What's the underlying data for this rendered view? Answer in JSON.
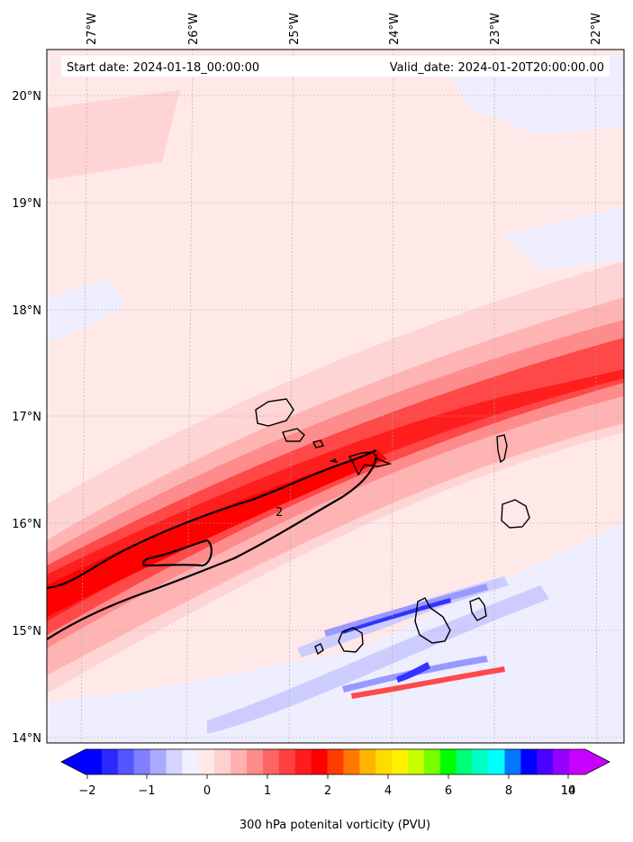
{
  "header": {
    "start_label": "Start date: 2024-01-18_00:00:00",
    "valid_label": "Valid_date: 2024-01-20T20:00:00.00"
  },
  "longitude_labels": [
    "27°W",
    "26°W",
    "25°W",
    "24°W",
    "23°W",
    "22°W"
  ],
  "latitude_labels": [
    "20°N",
    "19°N",
    "18°N",
    "17°N",
    "16°N",
    "15°N",
    "14°N"
  ],
  "contour_label": "2",
  "colorbar": {
    "title": "300 hPa potenital vorticity (PVU)",
    "tick_labels": [
      "−2",
      "−1",
      "0",
      "1",
      "2",
      "4",
      "6",
      "8",
      "10",
      "14"
    ],
    "colors": [
      "#0000ff",
      "#2a2aff",
      "#5555ff",
      "#7f7fff",
      "#aaaaff",
      "#d4d4ff",
      "#f0f0ff",
      "#ffe8e8",
      "#ffd0d0",
      "#ffb0b0",
      "#ff8c8c",
      "#ff6464",
      "#ff4040",
      "#ff1c1c",
      "#ff0000",
      "#ff3c00",
      "#ff7800",
      "#ffb400",
      "#ffdc00",
      "#fff000",
      "#c8ff00",
      "#78ff00",
      "#00ff00",
      "#00ff78",
      "#00ffc8",
      "#00ffff",
      "#0078ff",
      "#0000ff",
      "#4b00ff",
      "#9600ff",
      "#c800ff"
    ]
  },
  "field_colors": {
    "background": "#ffe8e8",
    "light_pink": "#ffd4d4",
    "pink": "#ffb4b4",
    "salmon": "#ff8c8c",
    "red": "#ff4848",
    "deep_red": "#ff1e1e",
    "core": "#ff0000",
    "pale_blue": "#eeeeff",
    "light_blue": "#ccccff",
    "mid_blue": "#9999ff",
    "blue": "#3333ff"
  }
}
